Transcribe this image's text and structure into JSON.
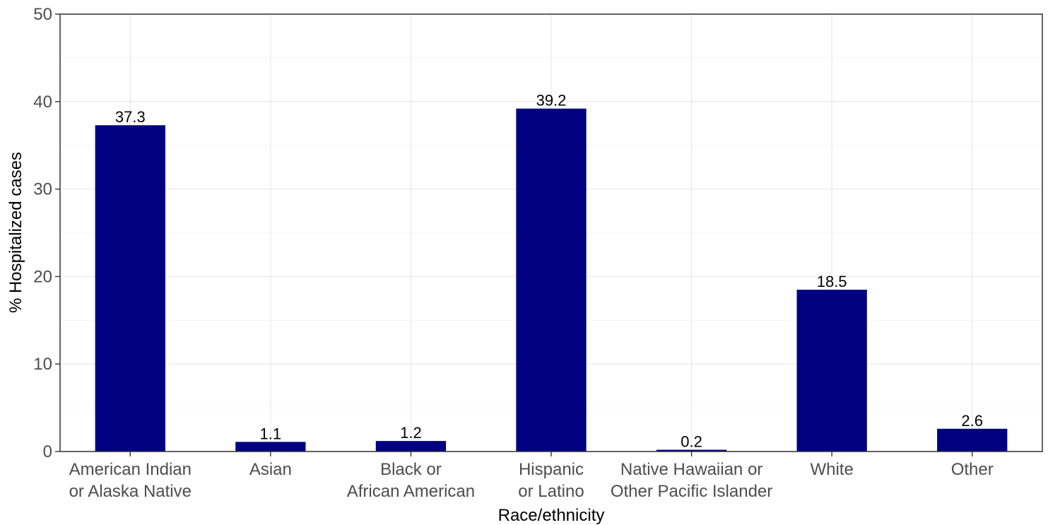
{
  "chart_data": {
    "type": "bar",
    "categories": [
      [
        "American Indian",
        "or Alaska Native"
      ],
      [
        "Asian"
      ],
      [
        "Black or",
        "African American"
      ],
      [
        "Hispanic",
        "or Latino"
      ],
      [
        "Native Hawaiian or",
        "Other Pacific Islander"
      ],
      [
        "White"
      ],
      [
        "Other"
      ]
    ],
    "values": [
      37.3,
      1.1,
      1.2,
      39.2,
      0.2,
      18.5,
      2.6
    ],
    "data_labels": [
      "37.3",
      "1.1",
      "1.2",
      "39.2",
      "0.2",
      "18.5",
      "2.6"
    ],
    "xlabel": "Race/ethnicity",
    "ylabel": "% Hospitalized cases",
    "ylim": [
      0,
      50
    ],
    "yticks": [
      0,
      10,
      20,
      30,
      40,
      50
    ],
    "grid": true,
    "bar_color": "#000080"
  }
}
